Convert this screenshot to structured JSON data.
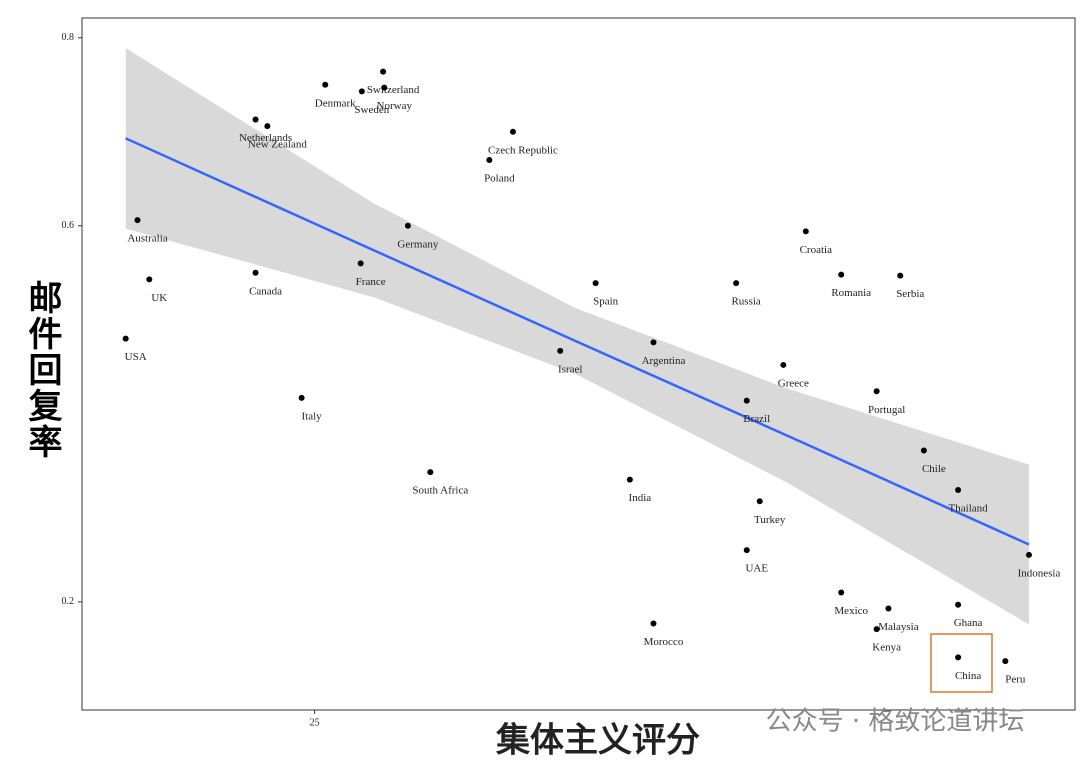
{
  "chart_data": {
    "type": "scatter",
    "xlabel": "集体主义评分",
    "ylabel": "邮件回复率",
    "watermark": "公众号 · 格致论道讲坛",
    "labels": [
      "USA",
      "Australia",
      "UK",
      "Canada",
      "Netherlands",
      "New Zealand",
      "Italy",
      "Denmark",
      "Sweden",
      "Switzerland",
      "Norway",
      "France",
      "Germany",
      "South Africa",
      "Poland",
      "Czech Republic",
      "Israel",
      "Spain",
      "India",
      "Morocco",
      "Argentina",
      "Russia",
      "UAE",
      "Brazil",
      "Turkey",
      "Greece",
      "Croatia",
      "Mexico",
      "Romania",
      "Kenya",
      "Portugal",
      "Malaysia",
      "Serbia",
      "Chile",
      "Ghana",
      "Thailand",
      "China",
      "Peru",
      "Indonesia"
    ],
    "x": [
      9.0,
      10.0,
      11.0,
      20.0,
      20.0,
      21.0,
      23.9,
      25.9,
      29.0,
      30.8,
      30.9,
      28.9,
      32.9,
      34.8,
      39.8,
      41.8,
      45.8,
      48.8,
      51.7,
      53.7,
      53.7,
      60.7,
      61.6,
      61.6,
      62.7,
      64.7,
      66.6,
      69.6,
      69.6,
      72.6,
      72.6,
      73.6,
      74.6,
      76.6,
      79.5,
      79.5,
      79.5,
      83.5,
      85.5
    ],
    "values": [
      0.48,
      0.606,
      0.543,
      0.55,
      0.713,
      0.706,
      0.417,
      0.75,
      0.743,
      0.764,
      0.747,
      0.56,
      0.6,
      0.338,
      0.67,
      0.7,
      0.467,
      0.539,
      0.33,
      0.177,
      0.476,
      0.539,
      0.255,
      0.414,
      0.307,
      0.452,
      0.594,
      0.21,
      0.548,
      0.171,
      0.424,
      0.193,
      0.547,
      0.361,
      0.197,
      0.319,
      0.141,
      0.137,
      0.25
    ],
    "color": "#000000",
    "fit": {
      "x": [
        9.0,
        30.0,
        47.0,
        65.0,
        85.5
      ],
      "values": [
        0.693,
        0.574,
        0.478,
        0.377,
        0.261
      ],
      "upper": [
        0.789,
        0.624,
        0.513,
        0.427,
        0.346
      ],
      "lower": [
        0.597,
        0.524,
        0.443,
        0.327,
        0.176
      ],
      "color": "#3366ff",
      "band_color": "#d9d9d9"
    },
    "xlim": [
      5.3,
      89.4
    ],
    "xticks": [
      25
    ],
    "ylim": [
      0.085,
      0.821
    ],
    "yticks": [
      0.2,
      0.6,
      0.8
    ]
  }
}
